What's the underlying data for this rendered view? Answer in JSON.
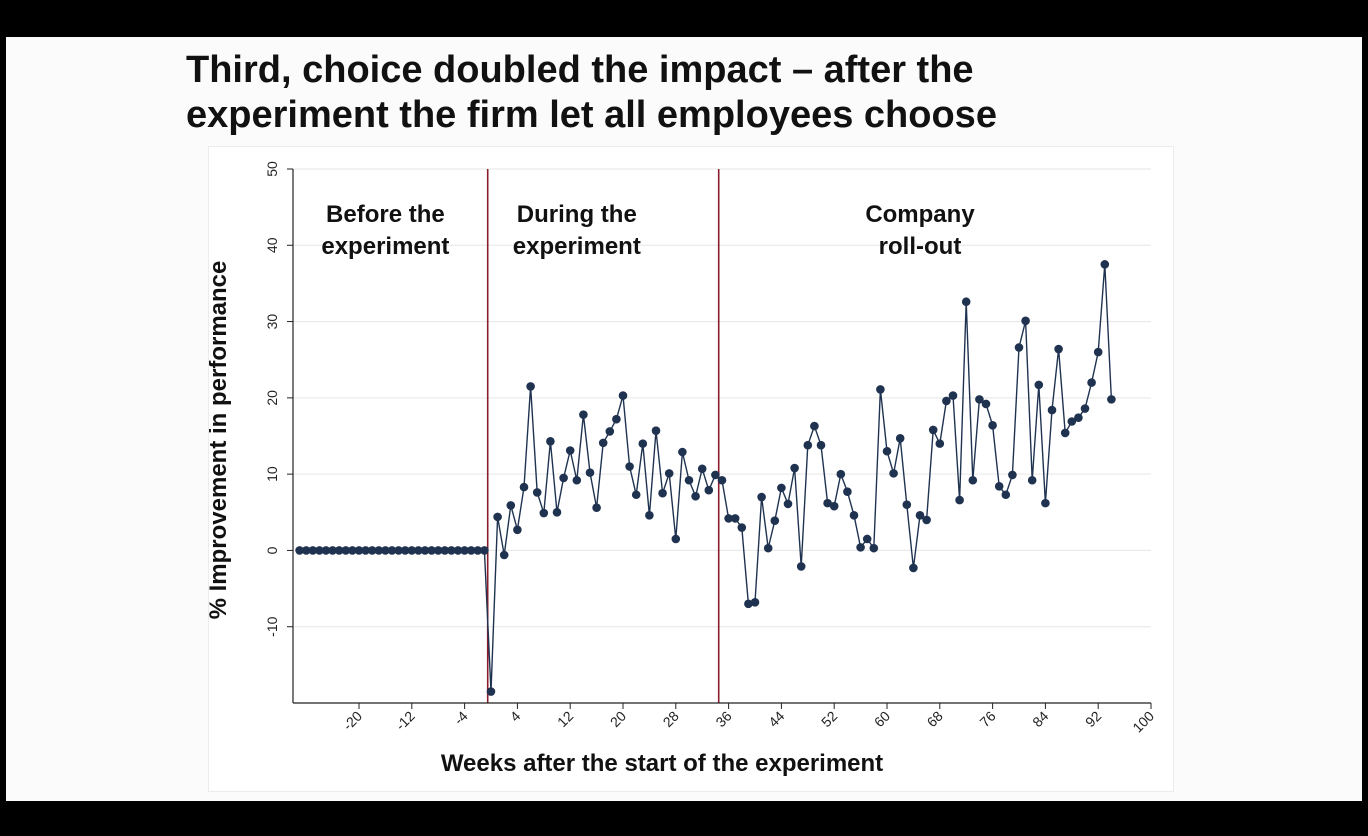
{
  "slide": {
    "title_line1": "Third, choice doubled the impact – after the",
    "title_line2": "experiment the firm let all employees choose"
  },
  "colors": {
    "series": "#1f3350",
    "phase_divider": "#8a1c2c"
  },
  "chart_data": {
    "type": "line",
    "title": "",
    "xlabel": "Weeks after the start of the experiment",
    "ylabel": "% Improvement in performance",
    "xlim": [
      -30,
      100
    ],
    "ylim": [
      -20,
      50
    ],
    "xticks": [
      -20,
      -12,
      -4,
      4,
      12,
      20,
      28,
      36,
      44,
      52,
      60,
      68,
      76,
      84,
      92,
      100
    ],
    "yticks": [
      -10,
      0,
      10,
      20,
      30,
      40,
      50
    ],
    "grid": true,
    "phase_dividers": [
      -0.5,
      34.5
    ],
    "phase_labels": [
      {
        "line1": "Before the",
        "line2": "experiment",
        "x": -16
      },
      {
        "line1": "During the",
        "line2": "experiment",
        "x": 13
      },
      {
        "line1": "Company",
        "line2": "roll-out",
        "x": 65
      }
    ],
    "series": [
      {
        "name": "Improvement",
        "x": [
          -29,
          -28,
          -27,
          -26,
          -25,
          -24,
          -23,
          -22,
          -21,
          -20,
          -19,
          -18,
          -17,
          -16,
          -15,
          -14,
          -13,
          -12,
          -11,
          -10,
          -9,
          -8,
          -7,
          -6,
          -5,
          -4,
          -3,
          -2,
          -1,
          0,
          1,
          2,
          3,
          4,
          5,
          6,
          7,
          8,
          9,
          10,
          11,
          12,
          13,
          14,
          15,
          16,
          17,
          18,
          19,
          20,
          21,
          22,
          23,
          24,
          25,
          26,
          27,
          28,
          29,
          30,
          31,
          32,
          33,
          34,
          35,
          36,
          37,
          38,
          39,
          40,
          41,
          42,
          43,
          44,
          45,
          46,
          47,
          48,
          49,
          50,
          51,
          52,
          53,
          54,
          55,
          56,
          57,
          58,
          59,
          60,
          61,
          62,
          63,
          64,
          65,
          66,
          67,
          68,
          69,
          70,
          71,
          72,
          73,
          74,
          75,
          76,
          77,
          78,
          79,
          80,
          81,
          82,
          83,
          84,
          85,
          86,
          87,
          88,
          89,
          90,
          91,
          92,
          93,
          94
        ],
        "values": [
          0,
          0,
          0,
          0,
          0,
          0,
          0,
          0,
          0,
          0,
          0,
          0,
          0,
          0,
          0,
          0,
          0,
          0,
          0,
          0,
          0,
          0,
          0,
          0,
          0,
          0,
          0,
          0,
          0,
          -18.5,
          4.4,
          -0.6,
          5.9,
          2.7,
          8.3,
          21.5,
          7.6,
          4.9,
          14.3,
          5.0,
          9.5,
          13.1,
          9.2,
          17.8,
          10.2,
          5.6,
          14.1,
          15.6,
          17.2,
          20.3,
          11.0,
          7.3,
          14.0,
          4.6,
          15.7,
          7.5,
          10.1,
          1.5,
          12.9,
          9.2,
          7.1,
          10.7,
          7.9,
          9.9,
          9.2,
          4.2,
          4.2,
          3.0,
          -7.0,
          -6.8,
          7.0,
          0.3,
          3.9,
          8.2,
          6.1,
          10.8,
          -2.1,
          13.8,
          16.3,
          13.8,
          6.2,
          5.8,
          10.0,
          7.7,
          4.6,
          0.4,
          1.5,
          0.3,
          21.1,
          13.0,
          10.1,
          14.7,
          6.0,
          -2.3,
          4.6,
          4.0,
          15.8,
          14.0,
          19.6,
          20.3,
          6.6,
          32.6,
          9.2,
          19.8,
          19.2,
          16.4,
          8.4,
          7.3,
          9.9,
          26.6,
          30.1,
          9.2,
          21.7,
          6.2,
          18.4,
          26.4,
          15.4,
          16.9,
          17.4,
          18.6,
          22.0,
          26.0,
          37.5,
          19.8
        ]
      }
    ]
  }
}
